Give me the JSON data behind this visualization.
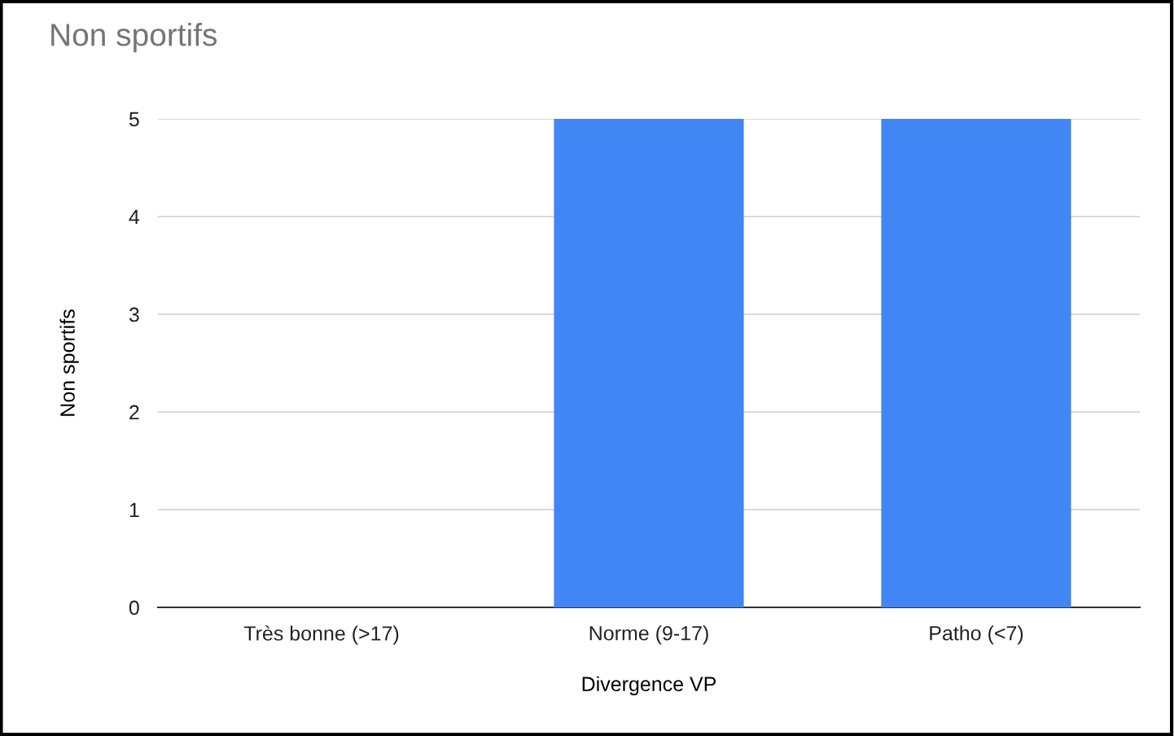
{
  "chart_data": {
    "type": "bar",
    "title": "Non sportifs",
    "xlabel": "Divergence VP",
    "ylabel": "Non sportifs",
    "categories": [
      "Très bonne (>17)",
      "Norme (9-17)",
      "Patho (<7)"
    ],
    "series": [
      {
        "color": "#4285f4",
        "values": [
          0,
          5,
          5
        ]
      }
    ],
    "ylim": [
      0,
      5
    ],
    "yticks": [
      0,
      1,
      2,
      3,
      4,
      5
    ],
    "grid": "y"
  }
}
